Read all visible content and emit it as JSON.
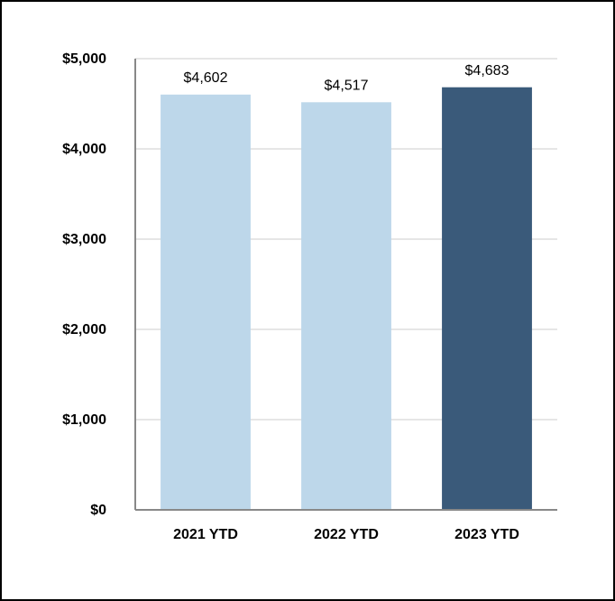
{
  "chart_data": {
    "type": "bar",
    "categories": [
      "2021 YTD",
      "2022 YTD",
      "2023 YTD"
    ],
    "values": [
      4602,
      4517,
      4683
    ],
    "value_labels": [
      "$4,602",
      "$4,517",
      "$4,683"
    ],
    "colors": [
      "#bdd7ea",
      "#bdd7ea",
      "#3a5a7a"
    ],
    "ylim": [
      0,
      5000
    ],
    "yticks": [
      {
        "value": 0,
        "label": "$0"
      },
      {
        "value": 1000,
        "label": "$1,000"
      },
      {
        "value": 2000,
        "label": "$2,000"
      },
      {
        "value": 3000,
        "label": "$3,000"
      },
      {
        "value": 4000,
        "label": "$4,000"
      },
      {
        "value": 5000,
        "label": "$5,000"
      }
    ],
    "grid": true
  }
}
